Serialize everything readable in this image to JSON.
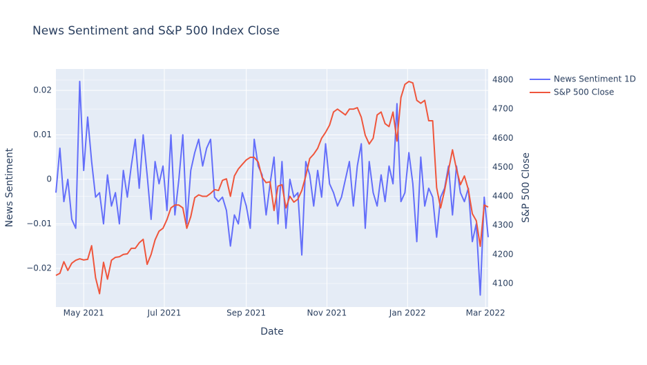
{
  "chart_data": {
    "type": "line",
    "title": "News Sentiment and S&P 500 Index Close",
    "xlabel": "Date",
    "ylabel": "News Sentiment",
    "y2label": "S&P 500 Close",
    "x": [
      "2021-04-10",
      "2021-04-13",
      "2021-04-16",
      "2021-04-19",
      "2021-04-22",
      "2021-04-25",
      "2021-04-28",
      "2021-05-01",
      "2021-05-04",
      "2021-05-07",
      "2021-05-10",
      "2021-05-13",
      "2021-05-16",
      "2021-05-19",
      "2021-05-22",
      "2021-05-25",
      "2021-05-28",
      "2021-05-31",
      "2021-06-03",
      "2021-06-06",
      "2021-06-09",
      "2021-06-12",
      "2021-06-15",
      "2021-06-18",
      "2021-06-21",
      "2021-06-24",
      "2021-06-27",
      "2021-06-30",
      "2021-07-03",
      "2021-07-06",
      "2021-07-09",
      "2021-07-12",
      "2021-07-15",
      "2021-07-18",
      "2021-07-21",
      "2021-07-24",
      "2021-07-27",
      "2021-07-30",
      "2021-08-02",
      "2021-08-05",
      "2021-08-08",
      "2021-08-11",
      "2021-08-14",
      "2021-08-17",
      "2021-08-20",
      "2021-08-23",
      "2021-08-26",
      "2021-08-29",
      "2021-09-01",
      "2021-09-04",
      "2021-09-07",
      "2021-09-10",
      "2021-09-13",
      "2021-09-16",
      "2021-09-19",
      "2021-09-22",
      "2021-09-25",
      "2021-09-28",
      "2021-10-01",
      "2021-10-04",
      "2021-10-07",
      "2021-10-10",
      "2021-10-13",
      "2021-10-16",
      "2021-10-19",
      "2021-10-22",
      "2021-10-25",
      "2021-10-28",
      "2021-10-31",
      "2021-11-03",
      "2021-11-06",
      "2021-11-09",
      "2021-11-12",
      "2021-11-15",
      "2021-11-18",
      "2021-11-21",
      "2021-11-24",
      "2021-11-27",
      "2021-11-30",
      "2021-12-03",
      "2021-12-06",
      "2021-12-09",
      "2021-12-12",
      "2021-12-15",
      "2021-12-18",
      "2021-12-21",
      "2021-12-24",
      "2021-12-27",
      "2021-12-30",
      "2022-01-02",
      "2022-01-05",
      "2022-01-08",
      "2022-01-11",
      "2022-01-14",
      "2022-01-17",
      "2022-01-20",
      "2022-01-23",
      "2022-01-26",
      "2022-01-29",
      "2022-02-01",
      "2022-02-04",
      "2022-02-07",
      "2022-02-10",
      "2022-02-13",
      "2022-02-16",
      "2022-02-19",
      "2022-02-22",
      "2022-02-25",
      "2022-02-28",
      "2022-03-03"
    ],
    "series": [
      {
        "name": "News Sentiment 1D",
        "color": "#636efa",
        "axis": "y",
        "values": [
          -0.003,
          0.007,
          -0.005,
          0.0,
          -0.009,
          -0.011,
          0.022,
          0.002,
          0.014,
          0.004,
          -0.004,
          -0.003,
          -0.01,
          0.001,
          -0.006,
          -0.003,
          -0.01,
          0.002,
          -0.004,
          0.003,
          0.009,
          -0.002,
          0.01,
          0.001,
          -0.009,
          0.004,
          -0.001,
          0.003,
          -0.007,
          0.01,
          -0.008,
          0.0,
          0.01,
          -0.01,
          0.002,
          0.006,
          0.009,
          0.003,
          0.007,
          0.009,
          -0.004,
          -0.005,
          -0.004,
          -0.007,
          -0.015,
          -0.008,
          -0.01,
          -0.003,
          -0.006,
          -0.011,
          0.009,
          0.003,
          0.001,
          -0.008,
          -0.001,
          0.005,
          -0.01,
          0.004,
          -0.011,
          0.0,
          -0.004,
          -0.003,
          -0.017,
          0.004,
          0.001,
          -0.006,
          0.002,
          -0.004,
          0.008,
          -0.001,
          -0.003,
          -0.006,
          -0.004,
          0.0,
          0.004,
          -0.006,
          0.003,
          0.008,
          -0.011,
          0.004,
          -0.003,
          -0.006,
          0.001,
          -0.005,
          0.003,
          -0.001,
          0.017,
          -0.005,
          -0.003,
          0.006,
          -0.001,
          -0.014,
          0.005,
          -0.006,
          -0.002,
          -0.004,
          -0.013,
          -0.004,
          -0.002,
          0.003,
          -0.008,
          0.003,
          -0.003,
          -0.005,
          -0.002,
          -0.014,
          -0.01,
          -0.026,
          -0.004,
          -0.013
        ]
      },
      {
        "name": "S&P 500 Close",
        "color": "#ef553b",
        "axis": "y2",
        "values": [
          4128,
          4135,
          4175,
          4145,
          4170,
          4180,
          4185,
          4181,
          4183,
          4230,
          4120,
          4065,
          4173,
          4115,
          4180,
          4190,
          4192,
          4200,
          4202,
          4221,
          4221,
          4240,
          4252,
          4166,
          4200,
          4250,
          4280,
          4290,
          4320,
          4360,
          4370,
          4370,
          4360,
          4290,
          4330,
          4395,
          4405,
          4400,
          4400,
          4410,
          4423,
          4420,
          4455,
          4460,
          4400,
          4470,
          4494,
          4510,
          4525,
          4534,
          4534,
          4518,
          4465,
          4447,
          4450,
          4351,
          4435,
          4440,
          4360,
          4400,
          4380,
          4390,
          4420,
          4470,
          4530,
          4545,
          4565,
          4600,
          4620,
          4645,
          4690,
          4700,
          4690,
          4680,
          4700,
          4700,
          4705,
          4672,
          4610,
          4580,
          4600,
          4680,
          4690,
          4650,
          4640,
          4690,
          4590,
          4740,
          4785,
          4795,
          4790,
          4730,
          4720,
          4730,
          4660,
          4660,
          4430,
          4360,
          4420,
          4490,
          4560,
          4494,
          4440,
          4470,
          4423,
          4340,
          4316,
          4228,
          4370,
          4363
        ]
      }
    ],
    "xlim": [
      "2021-04-10",
      "2022-03-03"
    ],
    "xticks": [
      {
        "value": "2021-05-01",
        "label": "May 2021"
      },
      {
        "value": "2021-07-01",
        "label": "Jul 2021"
      },
      {
        "value": "2021-09-01",
        "label": "Sep 2021"
      },
      {
        "value": "2021-11-01",
        "label": "Nov 2021"
      },
      {
        "value": "2022-01-01",
        "label": "Jan 2022"
      },
      {
        "value": "2022-03-01",
        "label": "Mar 2022"
      }
    ],
    "ylim": [
      -0.0287,
      0.0248
    ],
    "yticks": [
      {
        "value": -0.02,
        "label": "−0.02"
      },
      {
        "value": -0.01,
        "label": "−0.01"
      },
      0,
      0.01,
      0.02
    ],
    "y2lim": [
      4019,
      4838
    ],
    "y2ticks": [
      4100,
      4200,
      4300,
      4400,
      4500,
      4600,
      4700,
      4800
    ],
    "grid": true,
    "legend": "outside-right"
  }
}
